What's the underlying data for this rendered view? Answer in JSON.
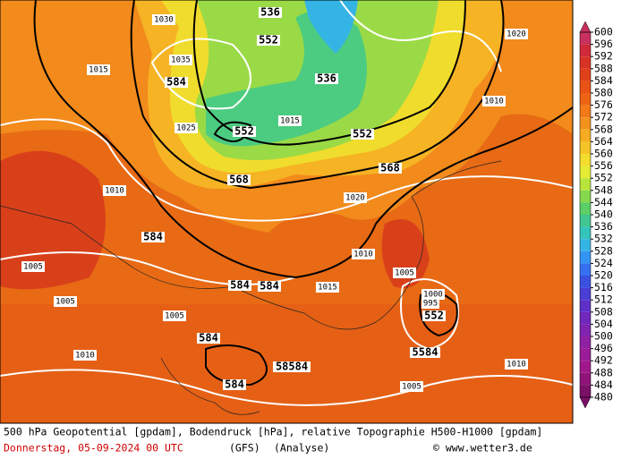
{
  "colorbar": {
    "levels": [
      600,
      596,
      592,
      588,
      584,
      580,
      576,
      572,
      568,
      564,
      560,
      556,
      552,
      548,
      544,
      540,
      536,
      532,
      528,
      524,
      520,
      516,
      512,
      508,
      504,
      500,
      496,
      492,
      488,
      484,
      480
    ],
    "colors": [
      "#c8305e",
      "#d02a3a",
      "#d83224",
      "#e0401a",
      "#e85214",
      "#ee6414",
      "#f27a18",
      "#f4921e",
      "#f6ac22",
      "#f6c426",
      "#f4dc2c",
      "#e4ec34",
      "#b8e43c",
      "#86d84c",
      "#5cce66",
      "#40c690",
      "#34c4bc",
      "#34b4e4",
      "#3494f4",
      "#3470f0",
      "#3a50e0",
      "#4a3ed4",
      "#5e30c8",
      "#7028bc",
      "#8024b0",
      "#9020a4",
      "#9a1c98",
      "#a0188c",
      "#901478",
      "#7a1068"
    ]
  },
  "map": {
    "geopotential_labels": [
      536,
      552,
      584,
      536,
      552,
      552,
      568,
      568,
      584,
      584,
      584,
      552,
      584,
      58584,
      584,
      5584
    ],
    "pressure_labels": [
      1015,
      1030,
      1035,
      1005,
      1005,
      1010,
      1005,
      1005,
      1010,
      1020,
      1010,
      1015,
      1000,
      995,
      1005,
      1010,
      1015,
      1010,
      1020,
      1025
    ]
  },
  "footer": {
    "title": "500 hPa Geopotential [gpdam], Bodendruck [hPa], relative Topographie H500-H1000 [gpdam]",
    "date": "Donnerstag, 05-09-2024  00 UTC",
    "model": "(GFS)",
    "run": "(Analyse)",
    "credit": "© www.wetter3.de"
  }
}
